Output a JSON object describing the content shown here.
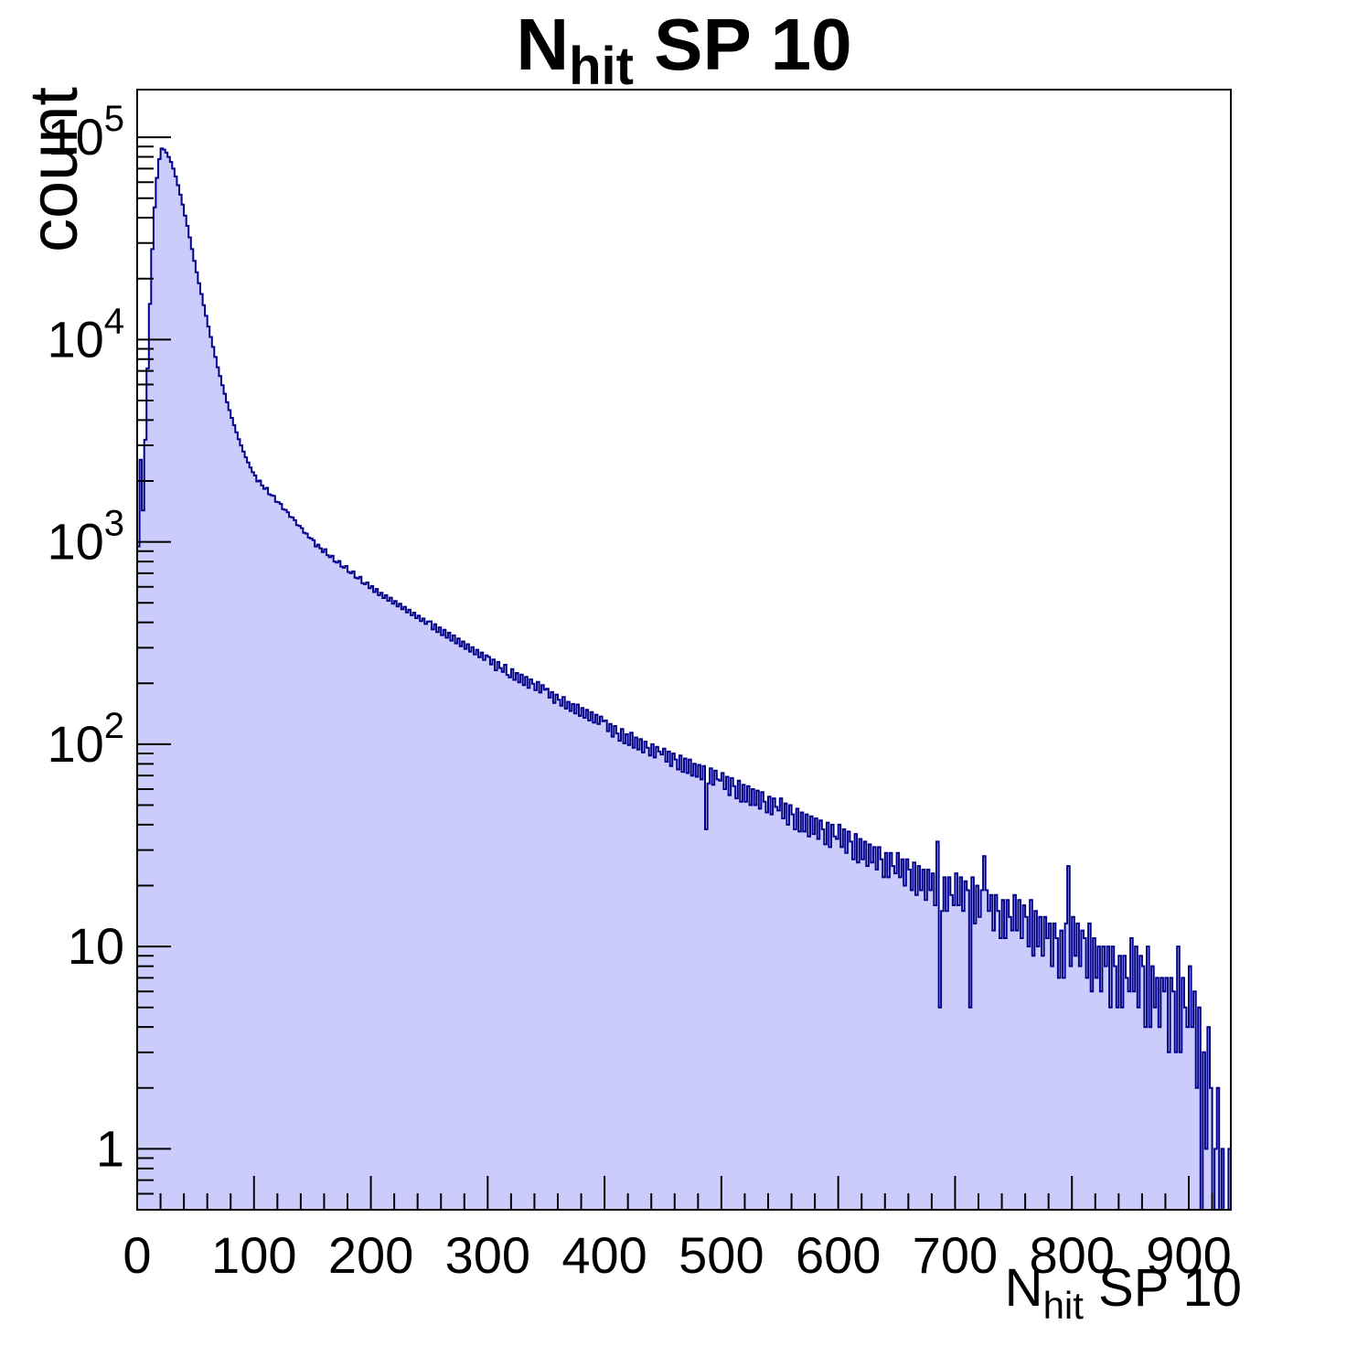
{
  "chart_data": {
    "type": "bar",
    "title": {
      "pre": "N",
      "sub": "hit",
      "post": " SP 10"
    },
    "grid": false,
    "legend": null,
    "x_axis": {
      "title": {
        "pre": "N",
        "sub": "hit",
        "post": " SP 10"
      },
      "min": 0,
      "max": 936,
      "major_ticks": [
        0,
        100,
        200,
        300,
        400,
        500,
        600,
        700,
        800,
        900
      ],
      "major_tick_labels": [
        "0",
        "100",
        "200",
        "300",
        "400",
        "500",
        "600",
        "700",
        "800",
        "900"
      ],
      "minor_step": 20
    },
    "y_axis": {
      "title": "count",
      "scale": "log",
      "min": 0.5,
      "max": 172000,
      "major_ticks": [
        {
          "value": 1,
          "label": "1",
          "exponent": ""
        },
        {
          "value": 10,
          "label": "10",
          "exponent": ""
        },
        {
          "value": 100,
          "label": "10",
          "exponent": "2"
        },
        {
          "value": 1000,
          "label": "10",
          "exponent": "3"
        },
        {
          "value": 10000,
          "label": "10",
          "exponent": "4"
        },
        {
          "value": 100000,
          "label": "10",
          "exponent": "5"
        }
      ]
    },
    "histogram": {
      "x_start": 0,
      "bin_width": 2,
      "fill_color": "#ccccfc",
      "line_color": "#00008b",
      "bins": [
        950,
        2550,
        1430,
        3200,
        7200,
        15000,
        28000,
        45000,
        63000,
        78000,
        88000,
        87000,
        84000,
        80000,
        75500,
        70000,
        64000,
        58000,
        52000,
        46500,
        41000,
        36500,
        32000,
        28000,
        24500,
        21500,
        19000,
        16800,
        14800,
        13100,
        11600,
        10300,
        9200,
        8200,
        7300,
        6600,
        5950,
        5400,
        4900,
        4480,
        4100,
        3780,
        3480,
        3220,
        3000,
        2800,
        2620,
        2470,
        2330,
        2210,
        2130,
        1990,
        2010,
        1900,
        1830,
        1850,
        1720,
        1700,
        1690,
        1580,
        1570,
        1540,
        1450,
        1440,
        1400,
        1330,
        1320,
        1280,
        1210,
        1200,
        1170,
        1110,
        1100,
        1050,
        1040,
        1020,
        950,
        970,
        930,
        890,
        920,
        860,
        840,
        855,
        800,
        790,
        805,
        755,
        745,
        760,
        710,
        700,
        715,
        665,
        660,
        672,
        625,
        618,
        630,
        590,
        605,
        565,
        585,
        545,
        560,
        528,
        545,
        512,
        530,
        495,
        510,
        480,
        495,
        465,
        478,
        448,
        462,
        434,
        447,
        420,
        432,
        406,
        418,
        393,
        404,
        405,
        370,
        392,
        358,
        378,
        346,
        368,
        336,
        356,
        325,
        345,
        315,
        333,
        305,
        322,
        296,
        312,
        287,
        302,
        278,
        293,
        269,
        284,
        261,
        275,
        270,
        248,
        262,
        232,
        255,
        238,
        228,
        247,
        220,
        214,
        235,
        208,
        225,
        202,
        221,
        196,
        215,
        190,
        209,
        199,
        185,
        203,
        180,
        196,
        186,
        188,
        170,
        181,
        160,
        176,
        166,
        155,
        171,
        150,
        162,
        146,
        158,
        142,
        157,
        138,
        151,
        135,
        148,
        131,
        144,
        128,
        140,
        126,
        137,
        130,
        131,
        116,
        126,
        109,
        123,
        113,
        104,
        119,
        101,
        112,
        99,
        114,
        96,
        108,
        94,
        106,
        91,
        103,
        96,
        88,
        100,
        86,
        97,
        92,
        89,
        95,
        82,
        92,
        78,
        90,
        84,
        75,
        88,
        73,
        85,
        72,
        84,
        70,
        80,
        69,
        79,
        67,
        78,
        38,
        64,
        76,
        63,
        74,
        67,
        66,
        72,
        60,
        69,
        56,
        68,
        62,
        54,
        66,
        52,
        63,
        52,
        62,
        50,
        60,
        50,
        59,
        48,
        58,
        52,
        46,
        55,
        45,
        54,
        49,
        47,
        54,
        43,
        51,
        40,
        50,
        45,
        38,
        48,
        37,
        46,
        37,
        45,
        35,
        44,
        36,
        43,
        34,
        42,
        38,
        32,
        41,
        31,
        40,
        35,
        34,
        40,
        31,
        38,
        29,
        37,
        33,
        27,
        36,
        26,
        34,
        27,
        33,
        25,
        32,
        26,
        31,
        24,
        31,
        27,
        22,
        29,
        22,
        29,
        25,
        23,
        29,
        22,
        27,
        20,
        27,
        24,
        19,
        26,
        18,
        25,
        19,
        24,
        17,
        24,
        19,
        23,
        16,
        33,
        5,
        15,
        22,
        15,
        22,
        18,
        16,
        23,
        16,
        22,
        15,
        21,
        19,
        5,
        22,
        13,
        20,
        14,
        19,
        28,
        19,
        15,
        18,
        12,
        18,
        15,
        11,
        17,
        11,
        17,
        14,
        12,
        18,
        12,
        17,
        11,
        16,
        14,
        10,
        17,
        9,
        15,
        10,
        14,
        9,
        14,
        11,
        13,
        8,
        13,
        11,
        7,
        12,
        7,
        13,
        25,
        8,
        14,
        9,
        13,
        8,
        12,
        11,
        7,
        13,
        6,
        11,
        7,
        10,
        6,
        10,
        8,
        10,
        5,
        10,
        8,
        5,
        9,
        5,
        9,
        7,
        6,
        11,
        6,
        10,
        5,
        9,
        8,
        4,
        10,
        4,
        8,
        5,
        7,
        4,
        7,
        6,
        7,
        3,
        7,
        6,
        3,
        10,
        3,
        7,
        5,
        4,
        8,
        4,
        6,
        2,
        5,
        0,
        3,
        1,
        4,
        2,
        0,
        1,
        2,
        0,
        1,
        0,
        0,
        1
      ]
    }
  }
}
